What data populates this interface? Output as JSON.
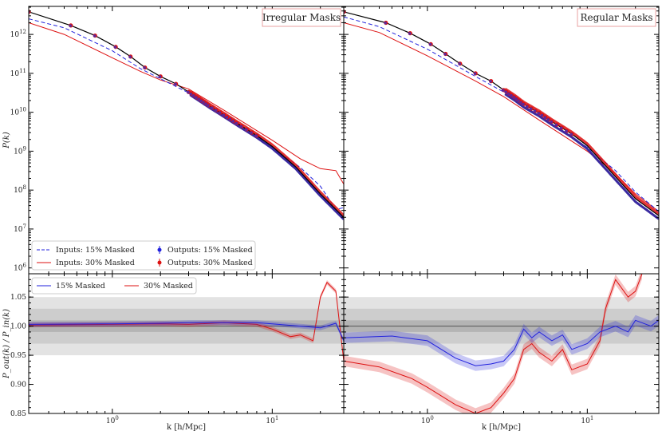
{
  "chart_data": {
    "type": "line",
    "xlabel": "k [h/Mpc]",
    "top_ylabel": "P(k)",
    "bottom_ylabel": "P_out(k) / P_in(k)",
    "x_log": true,
    "xlim": [
      0.3,
      28
    ],
    "x_ticks": [
      {
        "v": 1,
        "label": "10^0"
      },
      {
        "v": 10,
        "label": "10^1"
      }
    ],
    "top_ylim": [
      10,
      13.6
    ],
    "top_y_ticks": [
      {
        "v": 6,
        "label": "10^6"
      },
      {
        "v": 7,
        "label": "10^7"
      },
      {
        "v": 8,
        "label": "10^8"
      },
      {
        "v": 9,
        "label": "10^9"
      },
      {
        "v": 10,
        "label": "10^10"
      },
      {
        "v": 11,
        "label": "10^11"
      },
      {
        "v": 12,
        "label": "10^12"
      }
    ],
    "bottom_ylim": [
      0.85,
      1.09
    ],
    "bottom_y_ticks": [
      "0.85",
      "0.90",
      "0.95",
      "1.00",
      "1.05"
    ],
    "bands": [
      {
        "lo": 0.95,
        "hi": 1.05,
        "color": "#e3e3e3"
      },
      {
        "lo": 0.97,
        "hi": 1.03,
        "color": "#cdcdcd"
      },
      {
        "lo": 0.99,
        "hi": 1.01,
        "color": "#b4b4b4"
      }
    ],
    "colors": {
      "blue": "#2222dd",
      "red": "#dd1111",
      "black": "#000000"
    },
    "top_legend": {
      "inputs_15": "Inputs: 15% Masked",
      "inputs_30": "Inputs: 30% Masked",
      "outputs_15": "Outputs: 15% Masked",
      "outputs_30": "Outputs: 30% Masked"
    },
    "bottom_legend": {
      "masked_15": "15% Masked",
      "masked_30": "30% Masked"
    },
    "panels": [
      {
        "title": "Irregular Masks",
        "truth_points": [
          {
            "k": 0.3,
            "logP": 12.58
          },
          {
            "k": 0.55,
            "logP": 12.23
          },
          {
            "k": 0.78,
            "logP": 11.97
          },
          {
            "k": 1.05,
            "logP": 11.68
          },
          {
            "k": 1.3,
            "logP": 11.43
          },
          {
            "k": 1.6,
            "logP": 11.15
          },
          {
            "k": 2.0,
            "logP": 10.92
          },
          {
            "k": 2.5,
            "logP": 10.73
          },
          {
            "k": 3.0,
            "logP": 10.52
          },
          {
            "k": 3.5,
            "logP": 10.34
          },
          {
            "k": 4.0,
            "logP": 10.18
          },
          {
            "k": 5.0,
            "logP": 9.93
          },
          {
            "k": 6.0,
            "logP": 9.72
          },
          {
            "k": 8.0,
            "logP": 9.4
          },
          {
            "k": 10.0,
            "logP": 9.12
          },
          {
            "k": 14.0,
            "logP": 8.6
          },
          {
            "k": 20.0,
            "logP": 7.9
          },
          {
            "k": 28.0,
            "logP": 7.3
          }
        ],
        "inputs_15": [
          {
            "k": 0.3,
            "logP": 12.4
          },
          {
            "k": 0.5,
            "logP": 12.17
          },
          {
            "k": 1.0,
            "logP": 11.58
          },
          {
            "k": 1.5,
            "logP": 11.12
          },
          {
            "k": 2.0,
            "logP": 10.86
          },
          {
            "k": 3.0,
            "logP": 10.5
          },
          {
            "k": 5.0,
            "logP": 9.92
          },
          {
            "k": 10.0,
            "logP": 9.1
          },
          {
            "k": 15.0,
            "logP": 8.58
          },
          {
            "k": 20.0,
            "logP": 8.1
          },
          {
            "k": 25.0,
            "logP": 7.5
          },
          {
            "k": 28.0,
            "logP": 7.55
          }
        ],
        "inputs_30": [
          {
            "k": 0.3,
            "logP": 12.3
          },
          {
            "k": 0.5,
            "logP": 12.0
          },
          {
            "k": 1.0,
            "logP": 11.4
          },
          {
            "k": 1.5,
            "logP": 11.05
          },
          {
            "k": 2.0,
            "logP": 10.83
          },
          {
            "k": 3.0,
            "logP": 10.6
          },
          {
            "k": 5.0,
            "logP": 10.05
          },
          {
            "k": 10.0,
            "logP": 9.28
          },
          {
            "k": 15.0,
            "logP": 8.8
          },
          {
            "k": 20.0,
            "logP": 8.55
          },
          {
            "k": 25.0,
            "logP": 8.5
          },
          {
            "k": 28.0,
            "logP": 8.15
          }
        ],
        "ratio_15": [
          {
            "k": 0.3,
            "r": 1.003
          },
          {
            "k": 1.0,
            "r": 1.004
          },
          {
            "k": 2.0,
            "r": 1.005
          },
          {
            "k": 3.0,
            "r": 1.006
          },
          {
            "k": 5.0,
            "r": 1.006
          },
          {
            "k": 8.0,
            "r": 1.006
          },
          {
            "k": 10.0,
            "r": 1.004
          },
          {
            "k": 15.0,
            "r": 1.0
          },
          {
            "k": 20.0,
            "r": 0.997
          },
          {
            "k": 25.0,
            "r": 1.005
          },
          {
            "k": 28.0,
            "r": 0.975
          }
        ],
        "ratio_30": [
          {
            "k": 0.3,
            "r": 1.002
          },
          {
            "k": 1.0,
            "r": 1.003
          },
          {
            "k": 2.0,
            "r": 1.004
          },
          {
            "k": 3.0,
            "r": 1.003
          },
          {
            "k": 5.0,
            "r": 1.006
          },
          {
            "k": 8.0,
            "r": 1.003
          },
          {
            "k": 10.0,
            "r": 0.995
          },
          {
            "k": 13.0,
            "r": 0.982
          },
          {
            "k": 15.0,
            "r": 0.985
          },
          {
            "k": 18.0,
            "r": 0.975
          },
          {
            "k": 20.0,
            "r": 1.05
          },
          {
            "k": 22.0,
            "r": 1.075
          },
          {
            "k": 25.0,
            "r": 1.06
          },
          {
            "k": 28.0,
            "r": 0.94
          }
        ]
      },
      {
        "title": "Regular Masks",
        "truth_points": [
          {
            "k": 0.3,
            "logP": 12.58
          },
          {
            "k": 0.55,
            "logP": 12.3
          },
          {
            "k": 0.78,
            "logP": 12.03
          },
          {
            "k": 1.05,
            "logP": 11.75
          },
          {
            "k": 1.3,
            "logP": 11.5
          },
          {
            "k": 1.6,
            "logP": 11.25
          },
          {
            "k": 2.0,
            "logP": 11.0
          },
          {
            "k": 2.5,
            "logP": 10.8
          },
          {
            "k": 3.0,
            "logP": 10.57
          },
          {
            "k": 3.5,
            "logP": 10.39
          },
          {
            "k": 4.0,
            "logP": 10.21
          },
          {
            "k": 5.0,
            "logP": 9.98
          },
          {
            "k": 6.0,
            "logP": 9.76
          },
          {
            "k": 8.0,
            "logP": 9.44
          },
          {
            "k": 10.0,
            "logP": 9.14
          },
          {
            "k": 14.0,
            "logP": 8.48
          },
          {
            "k": 20.0,
            "logP": 7.78
          },
          {
            "k": 28.0,
            "logP": 7.34
          }
        ],
        "inputs_15": [
          {
            "k": 0.3,
            "logP": 12.45
          },
          {
            "k": 0.5,
            "logP": 12.2
          },
          {
            "k": 1.0,
            "logP": 11.62
          },
          {
            "k": 2.0,
            "logP": 10.92
          },
          {
            "k": 3.0,
            "logP": 10.52
          },
          {
            "k": 5.0,
            "logP": 9.9
          },
          {
            "k": 10.0,
            "logP": 9.1
          },
          {
            "k": 15.0,
            "logP": 8.5
          },
          {
            "k": 20.0,
            "logP": 7.95
          },
          {
            "k": 28.0,
            "logP": 7.45
          }
        ],
        "inputs_30": [
          {
            "k": 0.3,
            "logP": 12.3
          },
          {
            "k": 0.5,
            "logP": 12.05
          },
          {
            "k": 1.0,
            "logP": 11.45
          },
          {
            "k": 2.0,
            "logP": 10.8
          },
          {
            "k": 3.0,
            "logP": 10.4
          },
          {
            "k": 5.0,
            "logP": 9.8
          },
          {
            "k": 10.0,
            "logP": 9.0
          },
          {
            "k": 15.0,
            "logP": 8.42
          },
          {
            "k": 20.0,
            "logP": 7.9
          },
          {
            "k": 28.0,
            "logP": 7.45
          }
        ],
        "ratio_15": [
          {
            "k": 0.3,
            "r": 0.98
          },
          {
            "k": 0.6,
            "r": 0.983
          },
          {
            "k": 1.0,
            "r": 0.975
          },
          {
            "k": 1.5,
            "r": 0.945
          },
          {
            "k": 2.0,
            "r": 0.932
          },
          {
            "k": 2.5,
            "r": 0.935
          },
          {
            "k": 3.0,
            "r": 0.94
          },
          {
            "k": 3.5,
            "r": 0.96
          },
          {
            "k": 4.0,
            "r": 0.995
          },
          {
            "k": 4.5,
            "r": 0.98
          },
          {
            "k": 5.0,
            "r": 0.99
          },
          {
            "k": 6.0,
            "r": 0.975
          },
          {
            "k": 7.0,
            "r": 0.985
          },
          {
            "k": 8.0,
            "r": 0.96
          },
          {
            "k": 10.0,
            "r": 0.97
          },
          {
            "k": 12.0,
            "r": 0.99
          },
          {
            "k": 15.0,
            "r": 1.0
          },
          {
            "k": 18.0,
            "r": 0.99
          },
          {
            "k": 20.0,
            "r": 1.01
          },
          {
            "k": 25.0,
            "r": 1.0
          },
          {
            "k": 28.0,
            "r": 1.01
          }
        ],
        "ratio_30": [
          {
            "k": 0.3,
            "r": 0.94
          },
          {
            "k": 0.5,
            "r": 0.93
          },
          {
            "k": 0.8,
            "r": 0.91
          },
          {
            "k": 1.0,
            "r": 0.895
          },
          {
            "k": 1.5,
            "r": 0.865
          },
          {
            "k": 2.0,
            "r": 0.85
          },
          {
            "k": 2.5,
            "r": 0.86
          },
          {
            "k": 3.0,
            "r": 0.885
          },
          {
            "k": 3.5,
            "r": 0.91
          },
          {
            "k": 4.0,
            "r": 0.96
          },
          {
            "k": 4.5,
            "r": 0.97
          },
          {
            "k": 5.0,
            "r": 0.955
          },
          {
            "k": 6.0,
            "r": 0.94
          },
          {
            "k": 7.0,
            "r": 0.96
          },
          {
            "k": 8.0,
            "r": 0.925
          },
          {
            "k": 10.0,
            "r": 0.935
          },
          {
            "k": 12.0,
            "r": 0.975
          },
          {
            "k": 13.0,
            "r": 1.03
          },
          {
            "k": 15.0,
            "r": 1.08
          },
          {
            "k": 18.0,
            "r": 1.05
          },
          {
            "k": 20.0,
            "r": 1.06
          },
          {
            "k": 22.0,
            "r": 1.09
          }
        ]
      }
    ]
  }
}
